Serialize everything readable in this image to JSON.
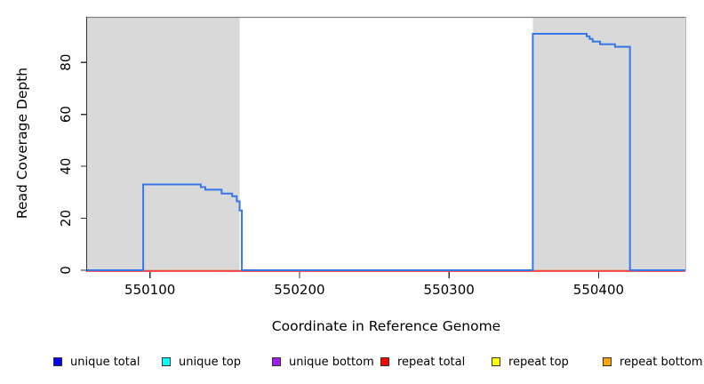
{
  "chart_data": {
    "type": "line",
    "title": "",
    "xlabel": "Coordinate in Reference Genome",
    "ylabel": "Read Coverage Depth",
    "xlim": [
      550058,
      550458
    ],
    "ylim": [
      0,
      97.5
    ],
    "x_ticks": [
      550100,
      550200,
      550300,
      550400
    ],
    "y_ticks": [
      0,
      20,
      40,
      60,
      80
    ],
    "grid": false,
    "legend_position": "bottom",
    "shaded_regions": [
      {
        "name": "repeat-region-left",
        "x0": 550058,
        "x1": 550160,
        "fill": "#d9d9d9"
      },
      {
        "name": "repeat-region-right",
        "x0": 550356,
        "x1": 550458,
        "fill": "#d9d9d9"
      }
    ],
    "series": [
      {
        "name": "unique total",
        "color": "#0000ff",
        "line_color": "#3576e8",
        "z": 6,
        "points": [
          [
            550058,
            0
          ],
          [
            550095.5,
            0
          ],
          [
            550095.5,
            33
          ],
          [
            550134,
            33
          ],
          [
            550134,
            32
          ],
          [
            550137,
            32
          ],
          [
            550137,
            31
          ],
          [
            550148,
            31
          ],
          [
            550148,
            29.5
          ],
          [
            550155,
            29.5
          ],
          [
            550155,
            28.5
          ],
          [
            550158,
            28.5
          ],
          [
            550158,
            26.5
          ],
          [
            550160,
            26.5
          ],
          [
            550160,
            23
          ],
          [
            550161.5,
            23
          ],
          [
            550161.5,
            0
          ],
          [
            550356,
            0
          ],
          [
            550356,
            91
          ],
          [
            550392,
            91
          ],
          [
            550392,
            90
          ],
          [
            550394,
            90
          ],
          [
            550394,
            89
          ],
          [
            550396,
            89
          ],
          [
            550396,
            88
          ],
          [
            550401,
            88
          ],
          [
            550401,
            87
          ],
          [
            550411,
            87
          ],
          [
            550411,
            86
          ],
          [
            550421,
            86
          ],
          [
            550421,
            0
          ],
          [
            550458,
            0
          ]
        ]
      },
      {
        "name": "unique top",
        "color": "#00ffff",
        "line_color": "#00ffff",
        "z": 1,
        "points": [
          [
            550058,
            0
          ],
          [
            550458,
            0
          ]
        ]
      },
      {
        "name": "unique bottom",
        "color": "#a020f0",
        "line_color": "#a020f0",
        "z": 2,
        "points": [
          [
            550058,
            0
          ],
          [
            550458,
            0
          ]
        ]
      },
      {
        "name": "repeat total",
        "color": "#ff0000",
        "line_color": "#ff4040",
        "z": 5,
        "points": [
          [
            550058,
            0
          ],
          [
            550458,
            0
          ]
        ]
      },
      {
        "name": "repeat top",
        "color": "#ffff00",
        "line_color": "#ffff00",
        "z": 3,
        "points": [
          [
            550058,
            0
          ],
          [
            550458,
            0
          ]
        ]
      },
      {
        "name": "repeat bottom",
        "color": "#ffa500",
        "line_color": "#ffa500",
        "z": 4,
        "points": [
          [
            550058,
            0
          ],
          [
            550458,
            0
          ]
        ]
      }
    ],
    "legend": [
      {
        "label": "unique total",
        "color": "#0000ff"
      },
      {
        "label": "unique top",
        "color": "#00ffff"
      },
      {
        "label": "unique bottom",
        "color": "#a020f0"
      },
      {
        "label": "repeat total",
        "color": "#ff0000"
      },
      {
        "label": "repeat top",
        "color": "#ffff00"
      },
      {
        "label": "repeat bottom",
        "color": "#ffa500"
      }
    ],
    "colors": {
      "region_fill": "#d9d9d9",
      "plot_top_border": "#808080",
      "plot_right_border": "#b5b5b5",
      "axis": "#333333"
    }
  }
}
